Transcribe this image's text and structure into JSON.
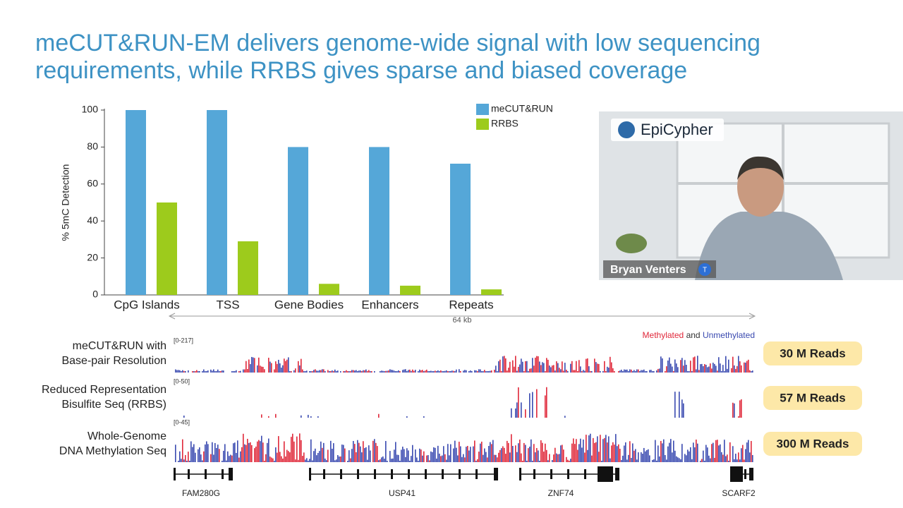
{
  "slide_title": "meCUT&RUN-EM delivers genome-wide signal with low sequencing requirements, while RRBS gives sparse and biased coverage",
  "chart_data": {
    "type": "bar",
    "y_label": "% 5mC Detection",
    "categories": [
      "CpG Islands",
      "TSS",
      "Gene Bodies",
      "Enhancers",
      "Repeats"
    ],
    "series": [
      {
        "name": "meCUT&RUN",
        "color": "#55a7d8",
        "values": [
          100,
          100,
          80,
          80,
          71
        ]
      },
      {
        "name": "RRBS",
        "color": "#9dcb1c",
        "values": [
          50,
          29,
          6,
          5,
          3
        ]
      }
    ],
    "ylim": [
      0,
      100
    ],
    "yticks": [
      0,
      20,
      40,
      60,
      80,
      100
    ],
    "legend": "upper right"
  },
  "genome_browser": {
    "region_size": "64 kb",
    "legend": {
      "methylated": "Methylated",
      "and": "and",
      "unmethylated": "Unmethylated"
    },
    "tracks": [
      {
        "label_lines": [
          "meCUT&RUN with",
          "Base-pair Resolution"
        ],
        "range": "[0-217]",
        "reads": "30 M Reads"
      },
      {
        "label_lines": [
          "Reduced Representation",
          "Bisulfite Seq (RRBS)"
        ],
        "range": "[0-50]",
        "reads": "57 M Reads"
      },
      {
        "label_lines": [
          "Whole-Genome",
          "DNA Methylation Seq"
        ],
        "range": "[0-45]",
        "reads": "300 M Reads"
      }
    ],
    "genes": [
      "FAM280G",
      "USP41",
      "ZNF74",
      "SCARF2"
    ]
  },
  "video": {
    "logo": "EpiCypher",
    "speaker": "Bryan Venters",
    "badge": "T"
  }
}
